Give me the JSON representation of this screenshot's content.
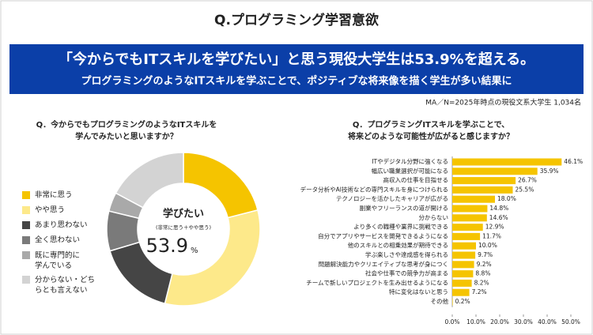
{
  "header": {
    "title": "Q.プログラミング学習意欲",
    "headline": "「今からでもITスキルを学びたい」と思う現役大学生は53.9%を超える。",
    "subheadline": "プログラミングのようなITスキルを学ぶことで、ポジティブな将来像を描く学生が多い結果に",
    "note": "MA／N=2025年時点の現役文系大学生 1,034名"
  },
  "chart_data": [
    {
      "type": "donut",
      "title": "Q．今からでもプログラミングのようなITスキルを\n学んでみたいと思いますか？",
      "categories": [
        "非常に思う",
        "やや思う",
        "あまり思わない",
        "全く思わない",
        "既に専門的に\n学んでいる",
        "分からない・どち\nらとも言えない"
      ],
      "values": [
        21.0,
        32.9,
        16.5,
        8.4,
        4.0,
        17.2
      ],
      "colors": [
        "#f5c400",
        "#fde98a",
        "#454545",
        "#7a7a7a",
        "#a9a9a9",
        "#d3d3d3"
      ],
      "center_label": "学びたい",
      "center_sublabel": "(非常に思う＋やや思う)",
      "center_value": 53.9,
      "center_unit": "%"
    },
    {
      "type": "bar",
      "orientation": "horizontal",
      "title": "Q．プログラミングITスキルを学ぶことで、\n将来どのような可能性が広がると感じますか？",
      "categories": [
        "ITやデジタル分野に強くなる",
        "幅広い職業選択が可能になる",
        "高収入の仕事を目指せる",
        "データ分析やAI技術などの専門スキルを身につけられる",
        "テクノロジーを活かしたキャリアが広がる",
        "副業やフリーランスの道が開ける",
        "分からない",
        "より多くの職種や業界に挑戦できる",
        "自分でアプリやサービスを開発できるようになる",
        "他のスキルとの相乗効果が期待できる",
        "学ぶ楽しさや達成感を得られる",
        "問題解決能力やクリエイティブな思考が身につく",
        "社会や仕事での競争力が高まる",
        "チームで新しいプロジェクトを生み出せるようになる",
        "特に変化はないと思う",
        "その他"
      ],
      "values": [
        46.1,
        35.9,
        26.7,
        25.5,
        18.0,
        14.8,
        14.6,
        12.9,
        11.7,
        10.0,
        9.7,
        9.2,
        8.8,
        8.2,
        7.2,
        0.2
      ],
      "value_labels": [
        "46.1%",
        "35.9%",
        "26.7%",
        "25.5%",
        "18.0%",
        "14.8%",
        "14.6%",
        "12.9%",
        "11.7%",
        "10.0%",
        "9.7%",
        "9.2%",
        "8.8%",
        "8.2%",
        "7.2%",
        "0.2%"
      ],
      "color": "#f5c400",
      "xlim": [
        0,
        50
      ],
      "xticks": [
        {
          "value": 0,
          "label": "0.0%"
        },
        {
          "value": 10,
          "label": "10.0%"
        },
        {
          "value": 20,
          "label": "20.0%"
        },
        {
          "value": 30,
          "label": "30.0%"
        },
        {
          "value": 40,
          "label": "40.0%"
        },
        {
          "value": 50,
          "label": "50.0%"
        }
      ]
    }
  ]
}
